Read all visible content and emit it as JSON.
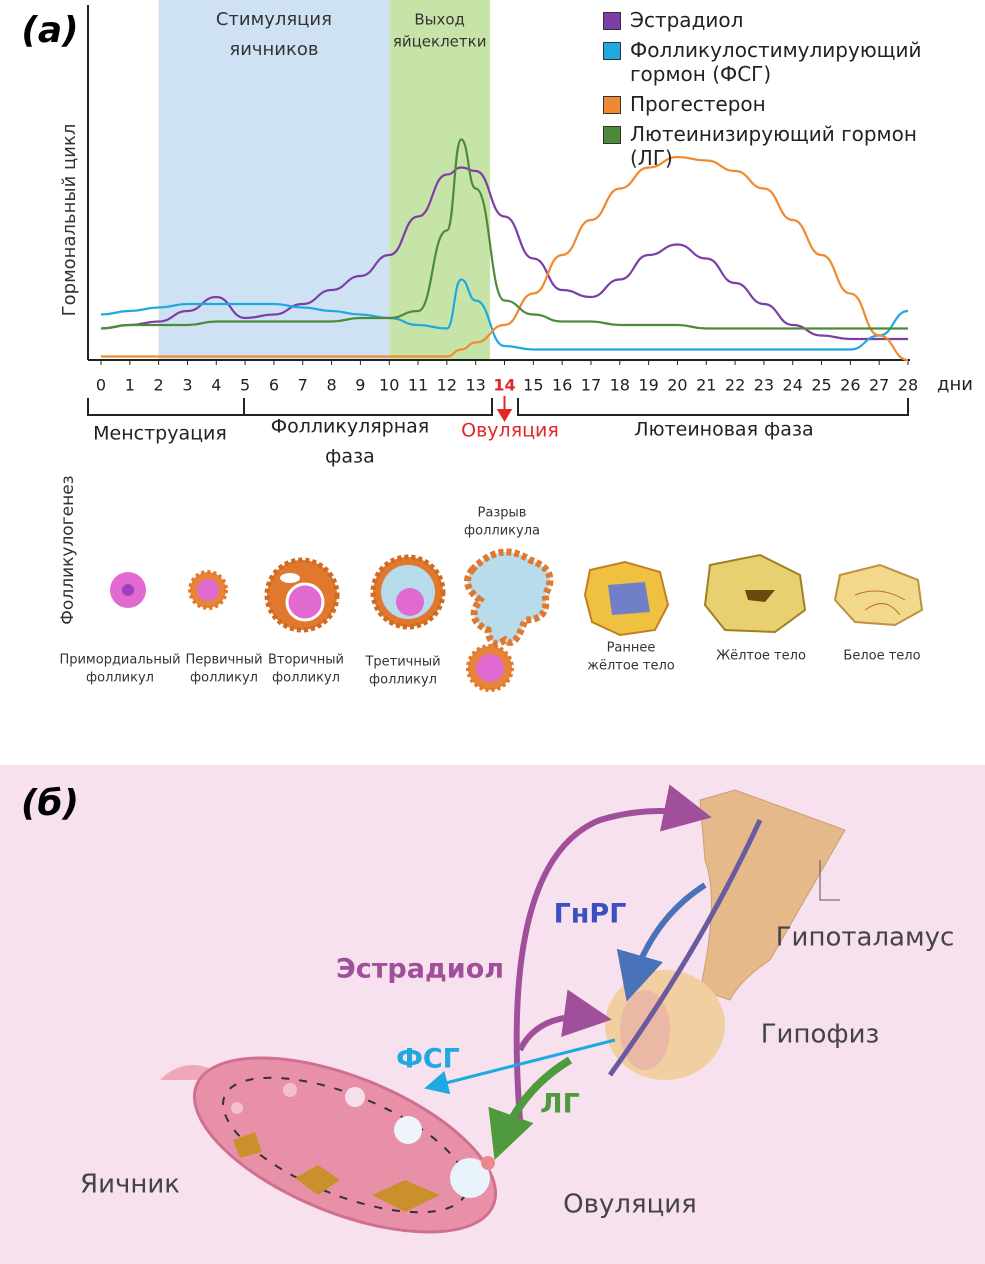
{
  "panel_labels": [
    "(а)",
    "(б)"
  ],
  "chart_data": {
    "type": "line",
    "ylabel": "Гормональный цикл",
    "xlabel": "дни",
    "x": [
      0,
      1,
      2,
      3,
      4,
      5,
      6,
      7,
      8,
      9,
      10,
      11,
      12,
      12.5,
      13,
      14,
      15,
      16,
      17,
      18,
      19,
      20,
      21,
      22,
      23,
      24,
      25,
      26,
      27,
      28
    ],
    "series": [
      {
        "name": "Эстрадиол",
        "color": "#7b3fa6",
        "values": [
          9,
          10,
          11,
          14,
          18,
          12,
          13,
          16,
          20,
          24,
          30,
          41,
          53,
          55,
          54,
          41,
          29,
          20,
          18,
          23,
          30,
          33,
          29,
          22,
          16,
          10,
          7,
          6,
          6,
          6
        ]
      },
      {
        "name": "Фолликулостимулирующий гормон (ФСГ)",
        "color": "#1ea9e1",
        "values": [
          13,
          14,
          15,
          16,
          16,
          16,
          16,
          15,
          14,
          13,
          12,
          10,
          9,
          23,
          17,
          4,
          3,
          3,
          3,
          3,
          3,
          3,
          3,
          3,
          3,
          3,
          3,
          3,
          7,
          14
        ]
      },
      {
        "name": "Прогестерон",
        "color": "#ef8a30",
        "values": [
          1,
          1,
          1,
          1,
          1,
          1,
          1,
          1,
          1,
          1,
          1,
          1,
          1,
          3,
          5,
          10,
          19,
          30,
          40,
          49,
          55,
          58,
          57,
          54,
          49,
          40,
          30,
          19,
          7,
          0
        ]
      },
      {
        "name": "Лютеинизирующий гормон (ЛГ)",
        "color": "#4e8a3c",
        "values": [
          9,
          10,
          10,
          10,
          11,
          11,
          11,
          11,
          11,
          12,
          12,
          14,
          37,
          63,
          49,
          17,
          13,
          11,
          11,
          10,
          10,
          10,
          9,
          9,
          9,
          9,
          9,
          9,
          9,
          9
        ]
      }
    ],
    "xlim": [
      0,
      28
    ],
    "ylim": [
      0,
      100
    ],
    "xticks": [
      0,
      1,
      2,
      3,
      4,
      5,
      6,
      7,
      8,
      9,
      10,
      11,
      12,
      13,
      14,
      15,
      16,
      17,
      18,
      19,
      20,
      21,
      22,
      23,
      24,
      25,
      26,
      27,
      28
    ],
    "highlight_tick": 14,
    "highlight_color": "#e3262a",
    "bands": [
      {
        "label": [
          "Стимуляция",
          "яичников"
        ],
        "from": 2,
        "to": 10,
        "color": "#cfe2f3"
      },
      {
        "label": [
          "Выход",
          "яйцеклетки"
        ],
        "from": 10,
        "to": 13.5,
        "color": "#c7e4a8"
      }
    ],
    "phases": [
      [
        "Менструация"
      ],
      [
        "Фолликулярная",
        "фаза"
      ],
      [
        "Овуляция"
      ],
      [
        "Лютеиновая фаза"
      ]
    ]
  },
  "follicles": {
    "title": "Фолликулогенез",
    "stages": [
      [
        "Примордиальный",
        "фолликул"
      ],
      [
        "Первичный",
        "фолликул"
      ],
      [
        "Вторичный",
        "фолликул"
      ],
      [
        "Третичный",
        "фолликул"
      ],
      [
        "Разрыв",
        "фолликула"
      ],
      [
        "Раннее",
        "жёлтое тело"
      ],
      [
        "Жёлтое тело"
      ],
      [
        "Белое тело"
      ]
    ]
  },
  "diagram": {
    "estradiol": "Эстрадиол",
    "gnrh": "ГнРГ",
    "hypothalamus": "Гипоталамус",
    "pituitary": "Гипофиз",
    "fsh": "ФСГ",
    "lh": "ЛГ",
    "ovary": "Яичник",
    "ovulation": "Овуляция"
  }
}
